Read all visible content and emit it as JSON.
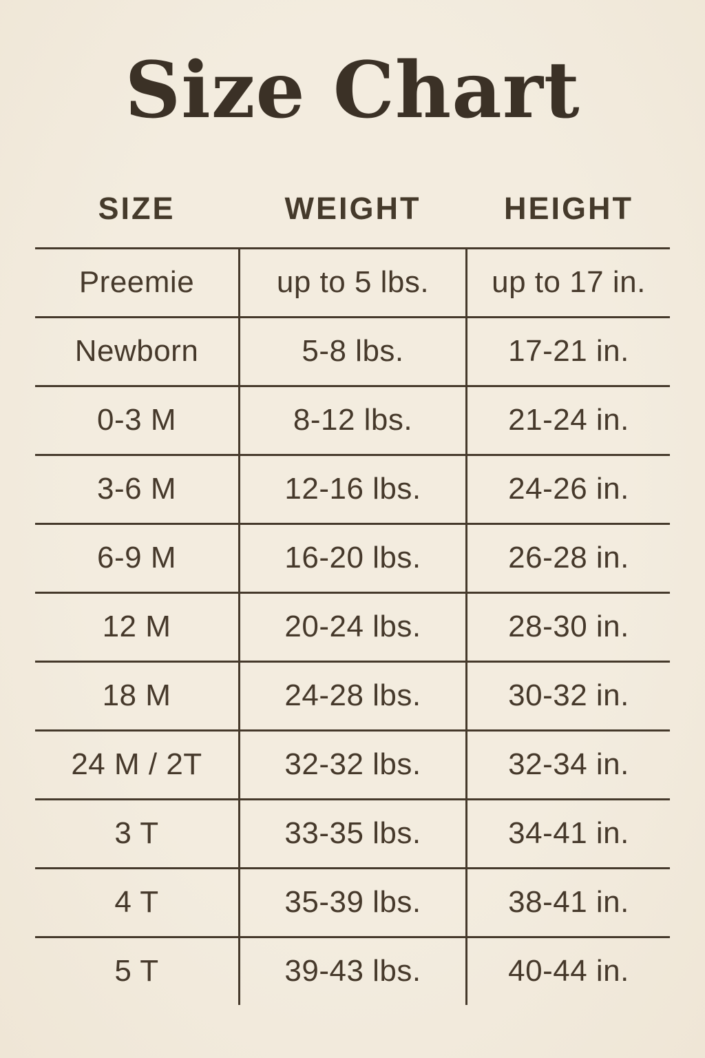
{
  "page": {
    "title": "Size Chart",
    "background_color": "#f3ecdf",
    "ink_color": "#45392b"
  },
  "table": {
    "headers": [
      "SIZE",
      "WEIGHT",
      "HEIGHT"
    ],
    "rows": [
      {
        "size": "Preemie",
        "weight": "up to 5 lbs.",
        "height": "up to 17 in."
      },
      {
        "size": "Newborn",
        "weight": "5-8 lbs.",
        "height": "17-21 in."
      },
      {
        "size": "0-3 M",
        "weight": "8-12 lbs.",
        "height": "21-24 in."
      },
      {
        "size": "3-6 M",
        "weight": "12-16 lbs.",
        "height": "24-26 in."
      },
      {
        "size": "6-9 M",
        "weight": "16-20 lbs.",
        "height": "26-28 in."
      },
      {
        "size": "12 M",
        "weight": "20-24 lbs.",
        "height": "28-30 in."
      },
      {
        "size": "18 M",
        "weight": "24-28 lbs.",
        "height": "30-32 in."
      },
      {
        "size": "24 M / 2T",
        "weight": "32-32 lbs.",
        "height": "32-34 in."
      },
      {
        "size": "3 T",
        "weight": "33-35 lbs.",
        "height": "34-41 in."
      },
      {
        "size": "4 T",
        "weight": "35-39 lbs.",
        "height": "38-41 in."
      },
      {
        "size": "5 T",
        "weight": "39-43 lbs.",
        "height": "40-44 in."
      }
    ]
  }
}
